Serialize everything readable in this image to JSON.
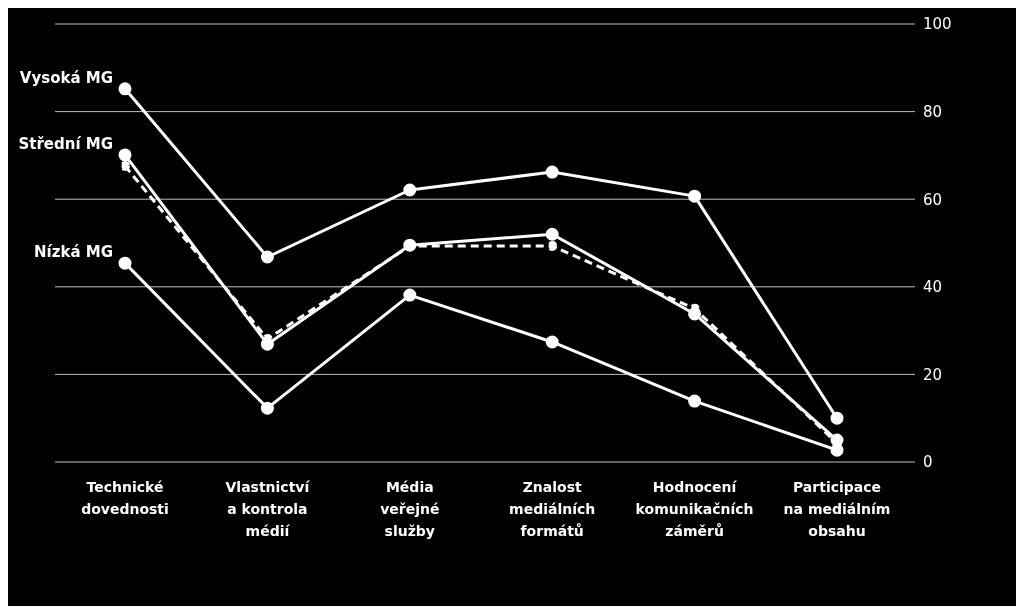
{
  "chart_data": {
    "type": "line",
    "categories": [
      "Technické dovednosti",
      "Vlastnictví a kontrola médií",
      "Média veřejné služby",
      "Znalost mediálních formátů",
      "Hodnocení komunikačních záměrů",
      "Participace na mediálním obsahu"
    ],
    "series": [
      {
        "name": "Vysoká MG",
        "color": "#ffffff",
        "values": [
          85.2,
          46.8,
          62.1,
          66.2,
          60.7,
          10.0
        ]
      },
      {
        "name": "Střední MG",
        "color": "#ffffff",
        "values": [
          70.1,
          26.9,
          49.5,
          52.0,
          33.8,
          5.0
        ]
      },
      {
        "color": "#ffffff",
        "line_style": "dashed",
        "values": [
          67.6,
          28.1,
          49.3,
          49.3,
          35.0,
          4.3
        ]
      },
      {
        "name": "Nízká MG",
        "color": "#ffffff",
        "values": [
          45.4,
          12.3,
          38.1,
          27.4,
          13.9,
          2.7
        ]
      }
    ],
    "ylim": [
      0,
      100
    ],
    "yticks": [
      0,
      20,
      40,
      60,
      80,
      100
    ],
    "grid": "y",
    "marker": "circle",
    "line_style": "solid"
  }
}
